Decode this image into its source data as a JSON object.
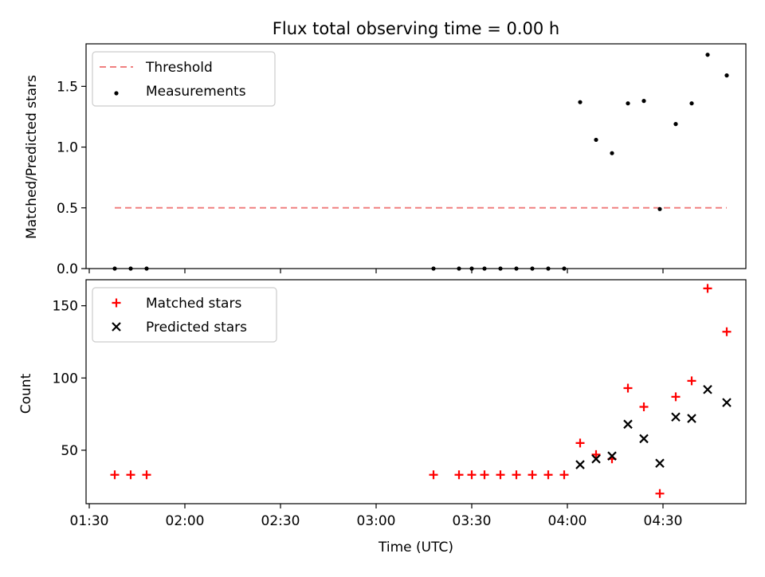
{
  "chart_data": {
    "title": "Flux total observing time = 0.00 h",
    "xlabel": "Time (UTC)",
    "x_tick_labels": [
      "01:30",
      "02:00",
      "02:30",
      "03:00",
      "03:30",
      "04:00",
      "04:30"
    ],
    "x_tick_minutes": [
      90,
      120,
      150,
      180,
      210,
      240,
      270
    ],
    "xlim_minutes": [
      89,
      296
    ],
    "panels": [
      {
        "type": "scatter",
        "ylabel": "Matched/Predicted stars",
        "ylim": [
          0.0,
          1.85
        ],
        "y_ticks": [
          0.0,
          0.5,
          1.0,
          1.5
        ],
        "y_tick_labels": [
          "0.0",
          "0.5",
          "1.0",
          "1.5"
        ],
        "legend_position": "top-left",
        "series": [
          {
            "name": "Threshold",
            "kind": "line",
            "style": "dashed",
            "color": "#f08080",
            "x_minutes": [
              98,
              290
            ],
            "y": [
              0.5,
              0.5
            ]
          },
          {
            "name": "Measurements",
            "kind": "points",
            "color": "#000000",
            "x_minutes": [
              98,
              103,
              108,
              198,
              206,
              210,
              214,
              219,
              224,
              229,
              234,
              239,
              244,
              249,
              254,
              259,
              264,
              269,
              274,
              279,
              284,
              290
            ],
            "y": [
              0,
              0,
              0,
              0,
              0,
              0,
              0,
              0,
              0,
              0,
              0,
              0,
              1.37,
              1.06,
              0.95,
              1.36,
              1.38,
              0.49,
              1.19,
              1.36,
              1.76,
              1.59
            ]
          }
        ]
      },
      {
        "type": "scatter",
        "ylabel": "Count",
        "ylim": [
          13,
          168
        ],
        "y_ticks": [
          50,
          100,
          150
        ],
        "y_tick_labels": [
          "50",
          "100",
          "150"
        ],
        "legend_position": "top-left",
        "series": [
          {
            "name": "Matched stars",
            "kind": "plus",
            "color": "#ff0000",
            "x_minutes": [
              98,
              103,
              108,
              198,
              206,
              210,
              214,
              219,
              224,
              229,
              234,
              239,
              244,
              249,
              254,
              259,
              264,
              269,
              274,
              279,
              284,
              290
            ],
            "y": [
              33,
              33,
              33,
              33,
              33,
              33,
              33,
              33,
              33,
              33,
              33,
              33,
              55,
              47,
              44,
              93,
              80,
              20,
              87,
              98,
              162,
              132
            ]
          },
          {
            "name": "Predicted stars",
            "kind": "cross",
            "color": "#000000",
            "x_minutes": [
              244,
              249,
              254,
              259,
              264,
              269,
              274,
              279,
              284,
              290
            ],
            "y": [
              40,
              44,
              46,
              68,
              58,
              41,
              73,
              72,
              92,
              83
            ]
          }
        ]
      }
    ]
  }
}
